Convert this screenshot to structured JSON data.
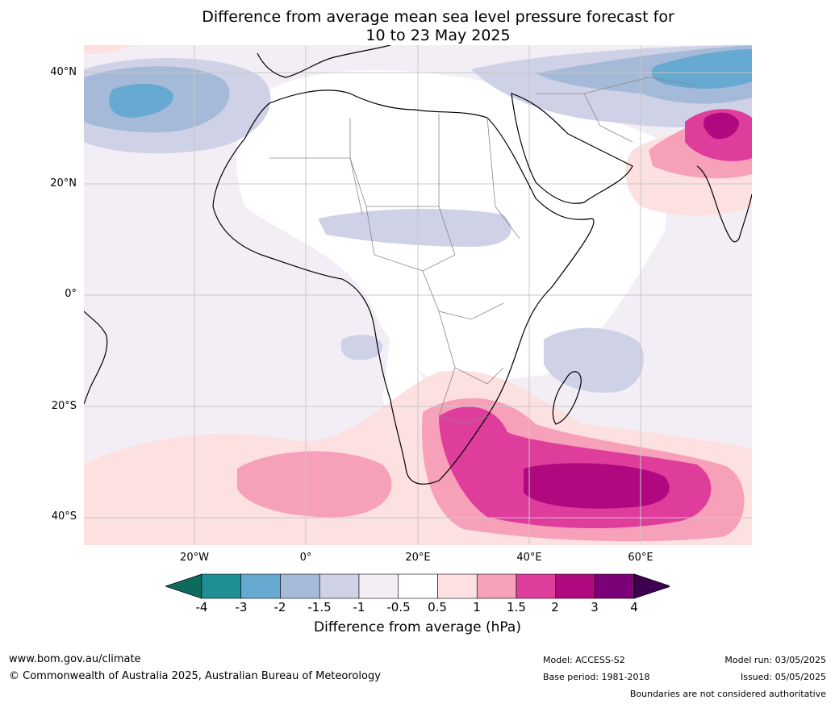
{
  "title": {
    "line1": "Difference from average mean sea level pressure forecast for",
    "line2": "10 to 23 May 2025"
  },
  "lat_labels": [
    "40°N",
    "20°N",
    "0°",
    "20°S",
    "40°S"
  ],
  "lon_labels": [
    "20°W",
    "0°",
    "20°E",
    "40°E",
    "60°E"
  ],
  "colorbar": {
    "label": "Difference from average (hPa)",
    "ticks": [
      "-4",
      "-3",
      "-2",
      "-1.5",
      "-1",
      "-0.5",
      "0.5",
      "1",
      "1.5",
      "2",
      "3",
      "4"
    ],
    "colors": [
      "#0d6b5e",
      "#1e8f95",
      "#66a9d1",
      "#a5bad8",
      "#cfd1e6",
      "#f3eef6",
      "#ffffff",
      "#fde0e0",
      "#f7a0b9",
      "#df3d9c",
      "#b0087e",
      "#7a0177",
      "#3f0050"
    ]
  },
  "footer": {
    "website": "www.bom.gov.au/climate",
    "copyright": "© Commonwealth of Australia 2025, Australian Bureau of Meteorology",
    "model": "Model: ACCESS-S2",
    "base_period": "Base period: 1981-2018",
    "model_run": "Model run: 03/05/2025",
    "issued": "Issued: 05/05/2025",
    "disclaimer": "Boundaries are not considered authoritative"
  }
}
